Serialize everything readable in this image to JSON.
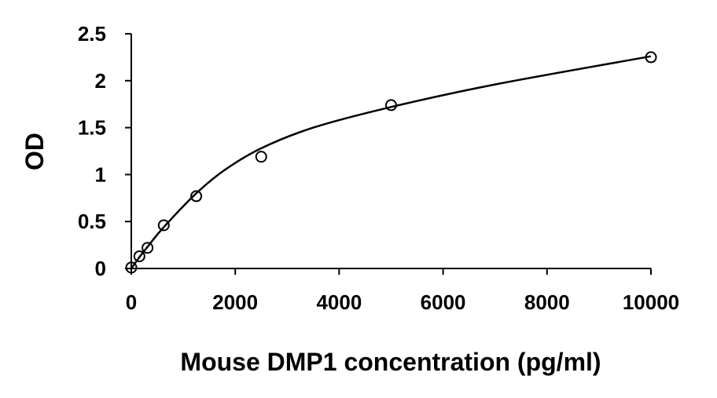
{
  "chart_data": {
    "type": "scatter",
    "title": "",
    "xlabel": "Mouse DMP1 concentration (pg/ml)",
    "ylabel": "OD",
    "xlim": [
      0,
      10000
    ],
    "ylim": [
      0,
      2.5
    ],
    "xticks": [
      0,
      2000,
      4000,
      6000,
      8000,
      10000
    ],
    "xtick_labels": [
      "0",
      "2000",
      "4000",
      "6000",
      "8000",
      "10000"
    ],
    "yticks": [
      0,
      0.5,
      1,
      1.5,
      2,
      2.5
    ],
    "ytick_labels": [
      "0",
      "0.5",
      "1",
      "1.5",
      "2",
      "2.5"
    ],
    "grid": false,
    "legend": "none",
    "series": [
      {
        "marker": "open-circle",
        "x": [
          0,
          156,
          312,
          625,
          1250,
          2500,
          5000,
          10000
        ],
        "y": [
          0.01,
          0.13,
          0.22,
          0.46,
          0.77,
          1.19,
          1.74,
          2.25
        ]
      }
    ],
    "fit_curve": {
      "style": "smooth-line",
      "x": [
        0,
        156,
        312,
        625,
        1250,
        1800,
        2500,
        3500,
        5000,
        7000,
        10000
      ],
      "y": [
        0.0,
        0.12,
        0.23,
        0.44,
        0.8,
        1.05,
        1.28,
        1.5,
        1.72,
        1.96,
        2.26
      ]
    },
    "colors": {
      "axis": "#000000",
      "marker": "#000000",
      "curve": "#000000",
      "background": "#ffffff"
    }
  }
}
